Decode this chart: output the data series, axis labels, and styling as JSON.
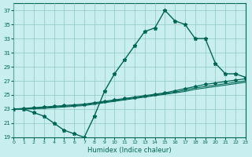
{
  "xlabel": "Humidex (Indice chaleur)",
  "bg_color": "#c8eef0",
  "grid_color": "#90c8c0",
  "line_color": "#006655",
  "xlim": [
    0,
    23
  ],
  "ylim": [
    19,
    38
  ],
  "yticks": [
    19,
    21,
    23,
    25,
    27,
    29,
    31,
    33,
    35,
    37
  ],
  "xticks": [
    0,
    1,
    2,
    3,
    4,
    5,
    6,
    7,
    8,
    9,
    10,
    11,
    12,
    13,
    14,
    15,
    16,
    17,
    18,
    19,
    20,
    21,
    22,
    23
  ],
  "main_y": [
    23,
    23,
    22.5,
    22,
    21,
    20,
    19.5,
    19,
    22,
    25.5,
    28,
    30,
    32,
    34,
    34.5,
    37,
    35.5,
    35,
    33,
    33,
    29.5,
    28,
    28,
    27.5
  ],
  "line2_y": [
    23.0,
    23.1,
    23.2,
    23.3,
    23.4,
    23.5,
    23.6,
    23.7,
    23.9,
    24.1,
    24.3,
    24.5,
    24.7,
    24.9,
    25.1,
    25.3,
    25.6,
    25.9,
    26.2,
    26.5,
    26.7,
    26.9,
    27.1,
    27.3
  ],
  "line3_y": [
    23.0,
    23.05,
    23.1,
    23.2,
    23.3,
    23.4,
    23.5,
    23.6,
    23.8,
    24.0,
    24.2,
    24.4,
    24.6,
    24.8,
    25.0,
    25.2,
    25.4,
    25.7,
    26.0,
    26.2,
    26.4,
    26.6,
    26.8,
    27.0
  ],
  "line4_y": [
    23.0,
    23.0,
    23.05,
    23.1,
    23.2,
    23.3,
    23.4,
    23.5,
    23.7,
    23.9,
    24.1,
    24.3,
    24.5,
    24.7,
    24.9,
    25.1,
    25.3,
    25.5,
    25.8,
    26.0,
    26.2,
    26.4,
    26.6,
    26.8
  ]
}
